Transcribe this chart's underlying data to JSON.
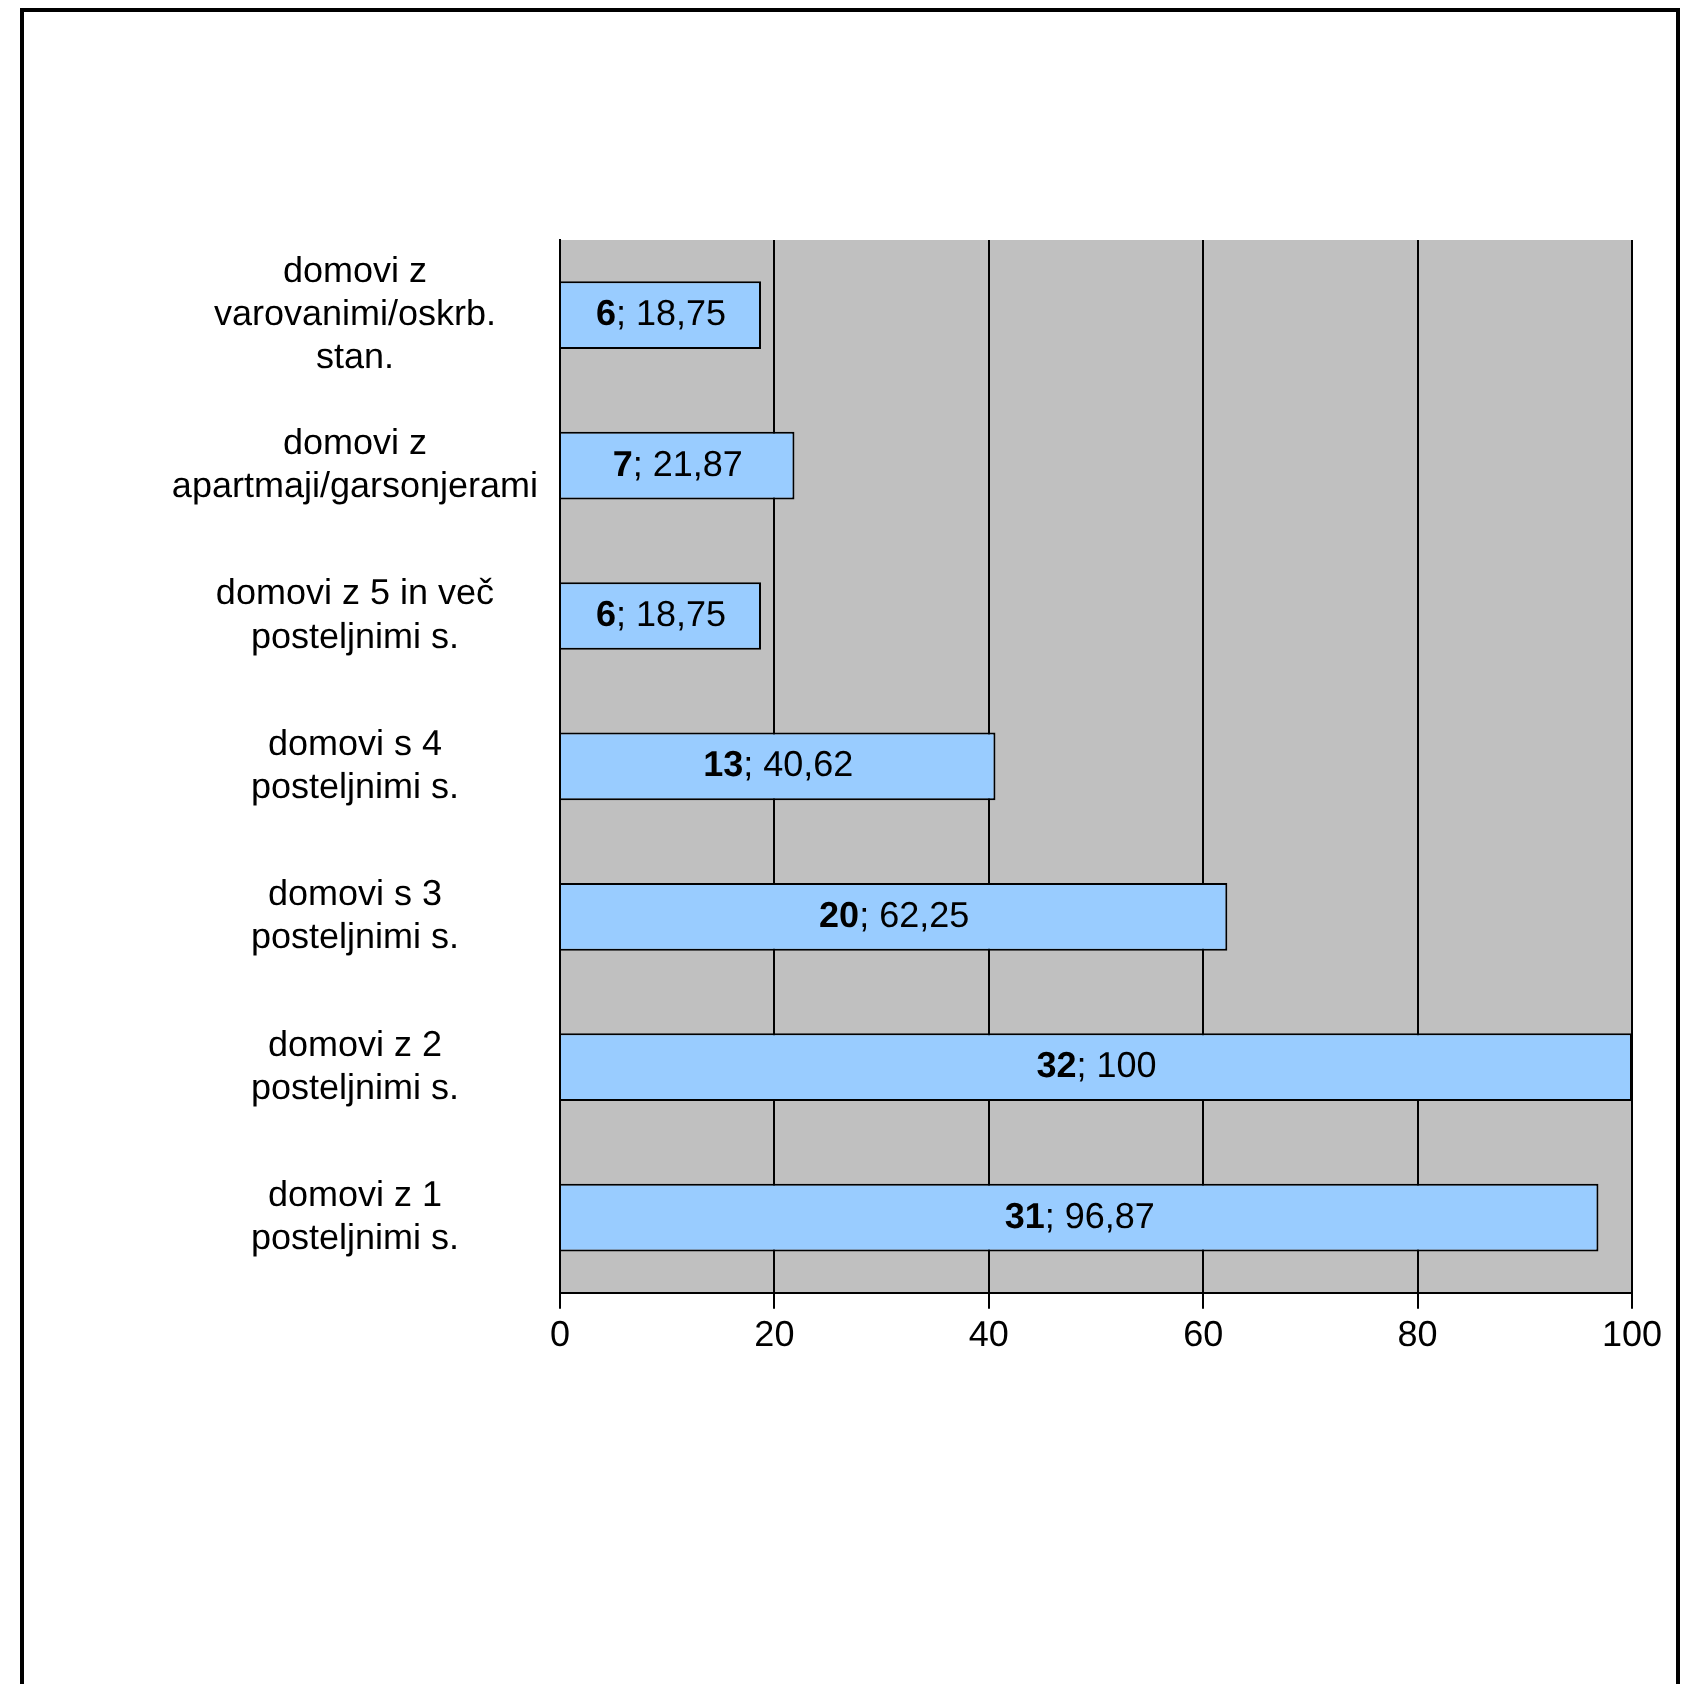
{
  "chart_data": {
    "type": "bar",
    "orientation": "horizontal",
    "categories": [
      "domovi z varovanimi/oskrb. stan.",
      "domovi z apartmaji/garsonjerami",
      "domovi z 5 in več posteljnimi s.",
      "domovi s 4 posteljnimi s.",
      "domovi s 3 posteljnimi s.",
      "domovi z 2 posteljnimi s.",
      "domovi z 1 posteljnimi s."
    ],
    "values": [
      18.75,
      21.87,
      18.75,
      40.62,
      62.25,
      100,
      96.87
    ],
    "value_labels": [
      "6; 18,75",
      "7; 21,87",
      "6; 18,75",
      "13; 40,62",
      "20; 62,25",
      "32; 100",
      "31; 96,87"
    ],
    "color": "#99ccff",
    "xlim": [
      0,
      100
    ],
    "xticks": [
      0,
      20,
      40,
      60,
      80,
      100
    ],
    "grid": "x",
    "legend": false
  }
}
